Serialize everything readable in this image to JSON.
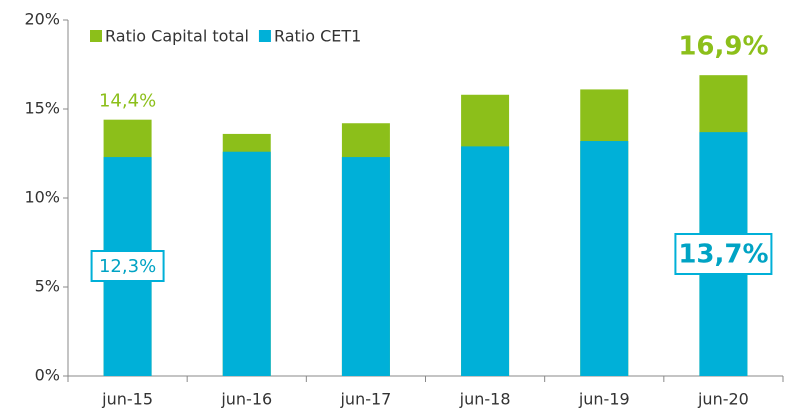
{
  "chart_data": {
    "type": "bar",
    "overlay": true,
    "categories": [
      "jun-15",
      "jun-16",
      "jun-17",
      "jun-18",
      "jun-19",
      "jun-20"
    ],
    "series": [
      {
        "name": "Ratio Capital total",
        "color": "#8cbf1a",
        "values": [
          14.4,
          13.6,
          14.2,
          15.8,
          16.1,
          16.9
        ],
        "value_labels": [
          "14,4%",
          null,
          null,
          null,
          null,
          "16,9%"
        ]
      },
      {
        "name": "Ratio CET1",
        "color": "#00b0d8",
        "values": [
          12.3,
          12.6,
          12.3,
          12.9,
          13.2,
          13.7
        ],
        "value_labels": [
          "12,3%",
          null,
          null,
          null,
          null,
          "13,7%"
        ]
      }
    ],
    "ylim": [
      0,
      20
    ],
    "yticks": [
      {
        "value": 0,
        "label": "0%"
      },
      {
        "value": 5,
        "label": "5%"
      },
      {
        "value": 10,
        "label": "10%"
      },
      {
        "value": 15,
        "label": "15%"
      },
      {
        "value": 20,
        "label": "20%"
      }
    ],
    "legend": "top-left"
  }
}
